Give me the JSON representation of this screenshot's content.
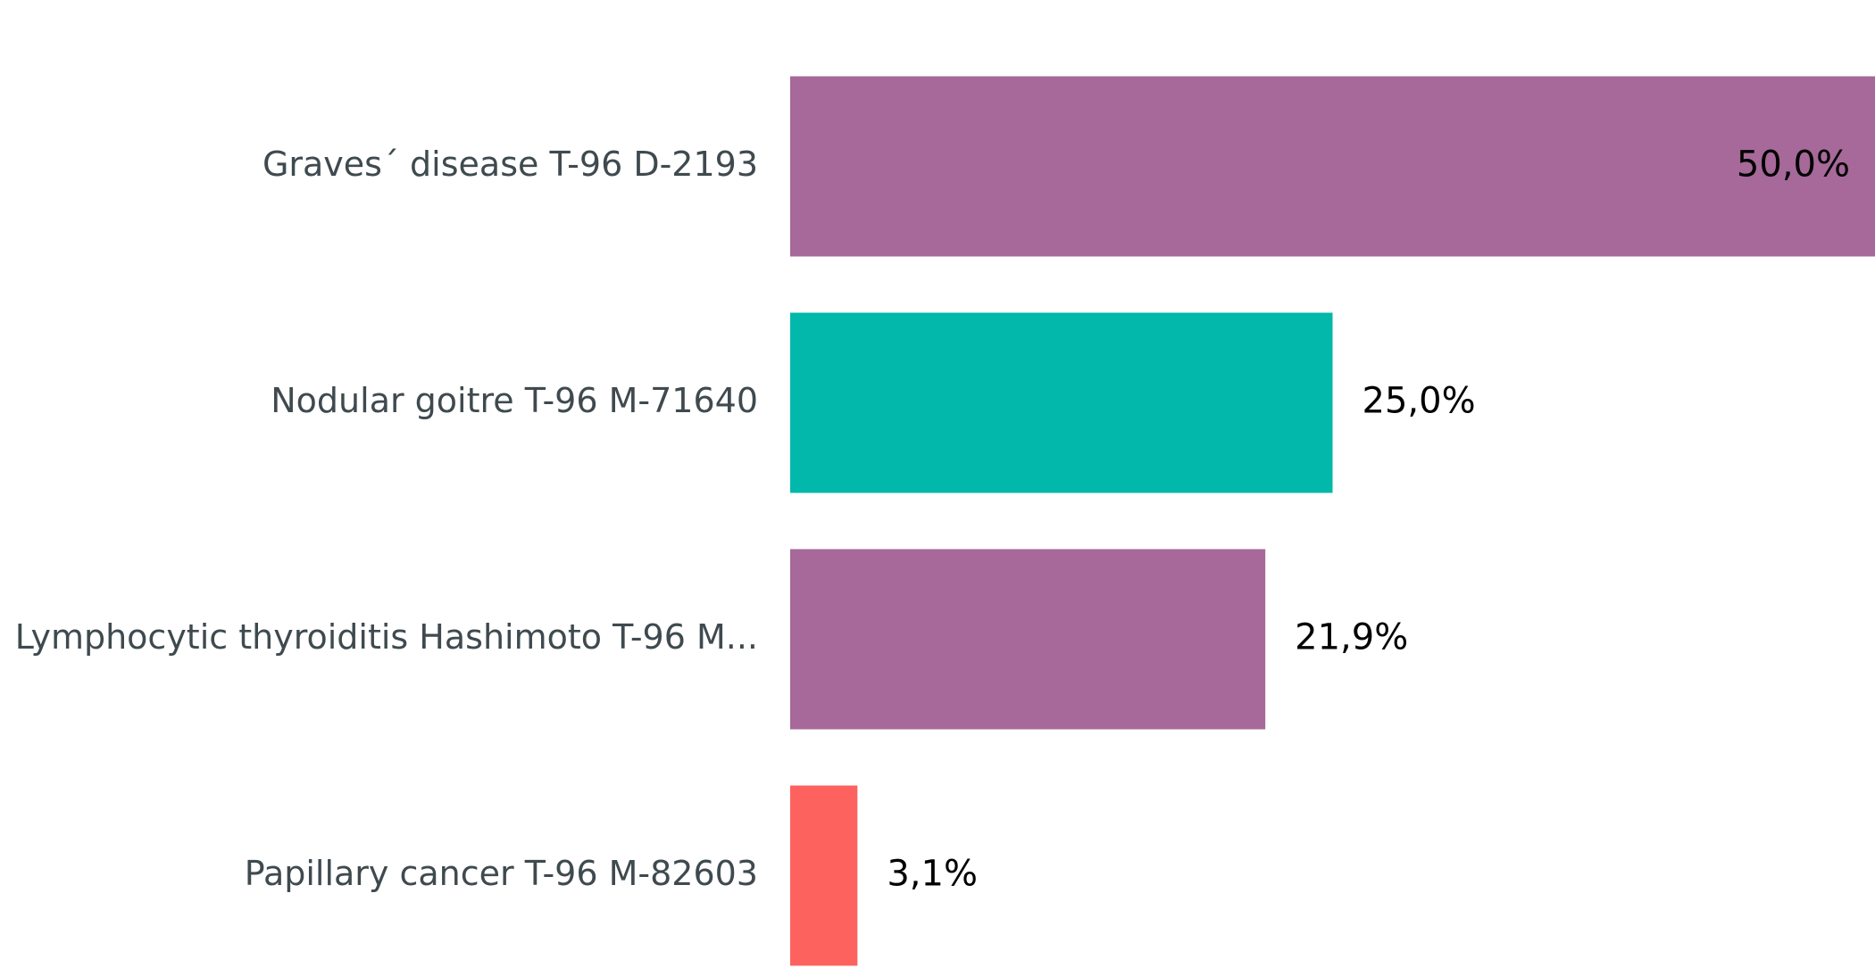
{
  "chart_data": {
    "type": "hbar",
    "categories": [
      "Graves´ disease T-96 D-2193",
      "Nodular goitre T-96 M-71640",
      "Lymphocytic thyroiditis Hashimoto T-96 M...",
      "Papillary cancer T-96 M-82603"
    ],
    "values": [
      50.0,
      25.0,
      21.9,
      3.1
    ],
    "value_labels": [
      "50,0%",
      "25,0%",
      "21,9%",
      "3,1%"
    ],
    "colors": [
      "#a66999",
      "#01b8aa",
      "#a66999",
      "#fd625e"
    ],
    "xlim": [
      0,
      50
    ]
  }
}
